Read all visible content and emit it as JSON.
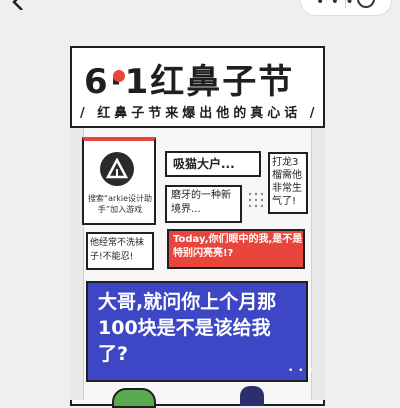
{
  "topbar": {
    "back_icon": "chevron-left-icon",
    "menu_icon": "more-dots-icon",
    "close_icon": "target-close-icon"
  },
  "poster": {
    "title": "6·1红鼻子节",
    "subtitle": "/ 红鼻子节来爆出他的真心话 /",
    "accent_red": "#e8463c",
    "accent_blue": "#3d47c6",
    "app_card": {
      "logo_icon": "arkie-logo-icon",
      "text": "搜索“arkie设计助手”加入游戏"
    },
    "cat_card": "吸猫大户...",
    "grind_card": "磨牙的一种新境界...",
    "dragon_card": "打龙3榴需他非常生气了!",
    "sock_card": "他经常不洗袜子!不能忍!",
    "today_card": "Today,你们眼中的我,是不是特别闪亮亮!?",
    "bubble_text": "大哥,就问你上个月那100块是不是该给我了?",
    "bubble_dots": "• • •"
  }
}
